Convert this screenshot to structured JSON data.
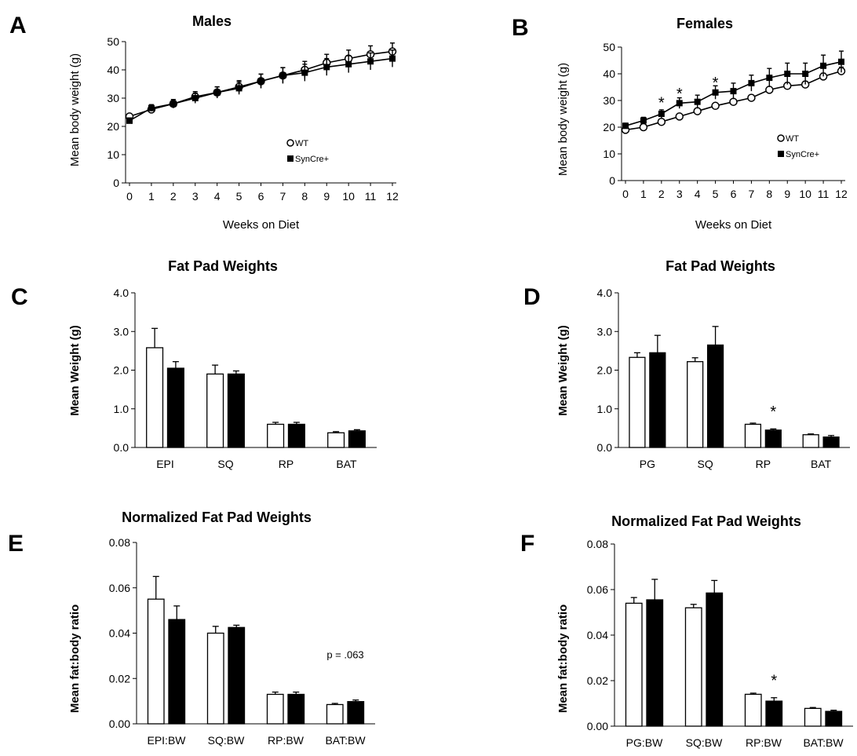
{
  "chart_data": [
    {
      "panel": "A",
      "type": "line",
      "title": "Males",
      "xlabel": "Weeks on Diet",
      "ylabel": "Mean body weight (g)",
      "x": [
        0,
        1,
        2,
        3,
        4,
        5,
        6,
        7,
        8,
        9,
        10,
        11,
        12
      ],
      "ylim": [
        0,
        50
      ],
      "yticks": [
        "0",
        "10",
        "20",
        "30",
        "40",
        "50"
      ],
      "legend_position": "lower-right",
      "grid": false,
      "series": [
        {
          "name": "WT",
          "marker": "open-circle",
          "values": [
            23.5,
            26,
            28,
            30.5,
            32,
            34,
            36,
            38,
            40,
            42.5,
            44,
            45.5,
            46.5
          ],
          "errors": [
            1.0,
            1.2,
            1.5,
            1.8,
            2.0,
            2.2,
            2.5,
            2.8,
            3.0,
            3.0,
            3.0,
            3.0,
            3.0
          ]
        },
        {
          "name": "SynCre+",
          "marker": "filled-square",
          "values": [
            22,
            26.5,
            28,
            30,
            32,
            33.5,
            36,
            38,
            39,
            41,
            42,
            43,
            44
          ],
          "errors": [
            1.0,
            1.2,
            1.5,
            1.8,
            2.0,
            2.2,
            2.5,
            2.8,
            3.0,
            3.0,
            3.0,
            3.0,
            3.0
          ]
        }
      ],
      "annotations": []
    },
    {
      "panel": "B",
      "type": "line",
      "title": "Females",
      "xlabel": "Weeks on Diet",
      "ylabel": "Mean body weight (g)",
      "x": [
        0,
        1,
        2,
        3,
        4,
        5,
        6,
        7,
        8,
        9,
        10,
        11,
        12
      ],
      "ylim": [
        0,
        50
      ],
      "yticks": [
        "0",
        "10",
        "20",
        "30",
        "40",
        "50"
      ],
      "legend_position": "lower-right",
      "grid": false,
      "series": [
        {
          "name": "WT",
          "marker": "open-circle",
          "values": [
            19,
            20,
            22,
            24,
            26,
            28,
            29.5,
            31,
            34,
            35.5,
            36,
            39,
            41
          ],
          "errors": [
            0.8,
            0.8,
            0.8,
            0.8,
            0.8,
            0.8,
            1.0,
            1.0,
            1.0,
            1.2,
            1.2,
            1.2,
            1.5
          ]
        },
        {
          "name": "SynCre+",
          "marker": "filled-square",
          "values": [
            20.5,
            22.5,
            25,
            29,
            29.5,
            33,
            33.5,
            36.5,
            38.5,
            40,
            40,
            43,
            44.5
          ],
          "errors": [
            1.0,
            1.2,
            1.5,
            2.0,
            2.5,
            2.5,
            3.0,
            3.0,
            3.5,
            4.0,
            4.0,
            4.0,
            4.0
          ]
        }
      ],
      "annotations": [
        {
          "text": "*",
          "x": 2,
          "y": 29.5
        },
        {
          "text": "*",
          "x": 3,
          "y": 33
        },
        {
          "text": "*",
          "x": 5,
          "y": 37
        }
      ]
    },
    {
      "panel": "C",
      "type": "bar",
      "title": "Fat Pad Weights",
      "ylabel": "Mean Weight (g)",
      "categories": [
        "EPI",
        "SQ",
        "RP",
        "BAT"
      ],
      "ylim": [
        0,
        4
      ],
      "yticks": [
        "0.0",
        "1.0",
        "2.0",
        "3.0",
        "4.0"
      ],
      "grid": false,
      "series": [
        {
          "fill": "white",
          "values": [
            2.58,
            1.9,
            0.6,
            0.38
          ],
          "errors": [
            0.5,
            0.23,
            0.05,
            0.03
          ]
        },
        {
          "fill": "black",
          "values": [
            2.05,
            1.9,
            0.6,
            0.43
          ],
          "errors": [
            0.17,
            0.08,
            0.05,
            0.03
          ]
        }
      ],
      "annotations": []
    },
    {
      "panel": "D",
      "type": "bar",
      "title": "Fat Pad Weights",
      "ylabel": "Mean Weight (g)",
      "categories": [
        "PG",
        "SQ",
        "RP",
        "BAT"
      ],
      "ylim": [
        0,
        4
      ],
      "yticks": [
        "0.0",
        "1.0",
        "2.0",
        "3.0",
        "4.0"
      ],
      "grid": false,
      "series": [
        {
          "fill": "white",
          "values": [
            2.33,
            2.22,
            0.6,
            0.33
          ],
          "errors": [
            0.12,
            0.1,
            0.03,
            0.02
          ]
        },
        {
          "fill": "black",
          "values": [
            2.45,
            2.65,
            0.45,
            0.27
          ],
          "errors": [
            0.45,
            0.48,
            0.03,
            0.04
          ]
        }
      ],
      "annotations": [
        {
          "text": "*",
          "category": 2,
          "y": 0.95
        }
      ]
    },
    {
      "panel": "E",
      "type": "bar",
      "title": "Normalized Fat Pad Weights",
      "ylabel": "Mean fat:body ratio",
      "categories": [
        "EPI:BW",
        "SQ:BW",
        "RP:BW",
        "BAT:BW"
      ],
      "ylim": [
        0,
        0.08
      ],
      "yticks": [
        "0.00",
        "0.02",
        "0.04",
        "0.06",
        "0.08"
      ],
      "grid": false,
      "series": [
        {
          "fill": "white",
          "values": [
            0.055,
            0.04,
            0.013,
            0.0085
          ],
          "errors": [
            0.01,
            0.003,
            0.001,
            0.0005
          ]
        },
        {
          "fill": "black",
          "values": [
            0.046,
            0.0425,
            0.013,
            0.0098
          ],
          "errors": [
            0.006,
            0.001,
            0.001,
            0.0007
          ]
        }
      ],
      "annotations": [
        {
          "text": "p = .063",
          "category": 3,
          "y": 0.029
        }
      ]
    },
    {
      "panel": "F",
      "type": "bar",
      "title": "Normalized Fat Pad Weights",
      "ylabel": "Mean fat:body ratio",
      "categories": [
        "PG:BW",
        "SQ:BW",
        "RP:BW",
        "BAT:BW"
      ],
      "ylim": [
        0,
        0.08
      ],
      "yticks": [
        "0.00",
        "0.02",
        "0.04",
        "0.06",
        "0.08"
      ],
      "grid": false,
      "series": [
        {
          "fill": "white",
          "values": [
            0.054,
            0.052,
            0.014,
            0.0078
          ],
          "errors": [
            0.0025,
            0.0015,
            0.0005,
            0.0004
          ]
        },
        {
          "fill": "black",
          "values": [
            0.0555,
            0.0585,
            0.011,
            0.0065
          ],
          "errors": [
            0.009,
            0.0055,
            0.0015,
            0.0005
          ]
        }
      ],
      "annotations": [
        {
          "text": "*",
          "category": 2,
          "y": 0.0205
        }
      ]
    }
  ]
}
